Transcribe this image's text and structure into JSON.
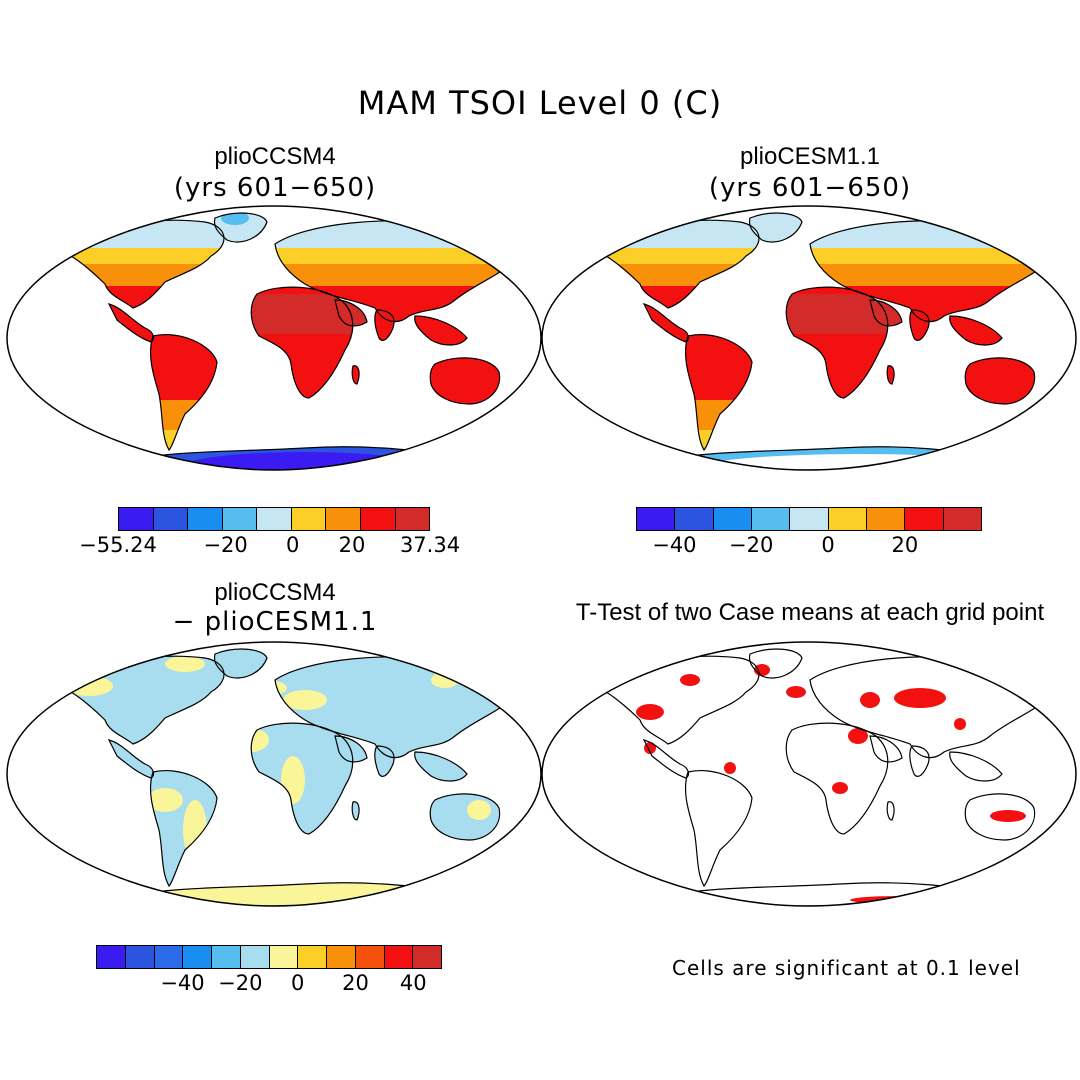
{
  "figure": {
    "title": "MAM TSOI Level 0 (C)"
  },
  "panels": [
    {
      "id": "p1",
      "title": "plioCCSM4",
      "subtitle": "(yrs 601−650)",
      "scheme": "model"
    },
    {
      "id": "p2",
      "title": "plioCESM1.1",
      "subtitle": "(yrs 601−650)",
      "scheme": "model"
    },
    {
      "id": "p3",
      "title": "plioCCSM4",
      "subtitle": "− plioCESM1.1",
      "scheme": "diff"
    },
    {
      "id": "p4",
      "title": "T-Test of two Case means at each grid point",
      "subtitle": "",
      "scheme": "ttest"
    }
  ],
  "colorbars": {
    "cb1": {
      "colors": [
        "#3a1cf2",
        "#2b55e0",
        "#1a8ef0",
        "#55bdf0",
        "#c7e6f3",
        "#fbcf28",
        "#f9900a",
        "#f21010",
        "#d32a2a"
      ],
      "labels": [
        "−55.24",
        "−20",
        "0",
        "20",
        "37.34"
      ]
    },
    "cb2": {
      "colors": [
        "#3a1cf2",
        "#2b55e0",
        "#1a8ef0",
        "#55bdf0",
        "#c7e6f3",
        "#fbcf28",
        "#f9900a",
        "#f21010",
        "#d32a2a"
      ],
      "labels": [
        "−40",
        "−20",
        "0",
        "20"
      ]
    },
    "cb3": {
      "colors": [
        "#3a1cf2",
        "#2b55e0",
        "#2b6ae8",
        "#1a8ef0",
        "#55bdf0",
        "#a8dcef",
        "#fbf59a",
        "#fbcf28",
        "#f9900a",
        "#f5500c",
        "#f21010",
        "#d32a2a"
      ],
      "labels": [
        "−40",
        "−20",
        "0",
        "20",
        "40"
      ]
    }
  },
  "note": "Cells are significant at 0.1 level"
}
